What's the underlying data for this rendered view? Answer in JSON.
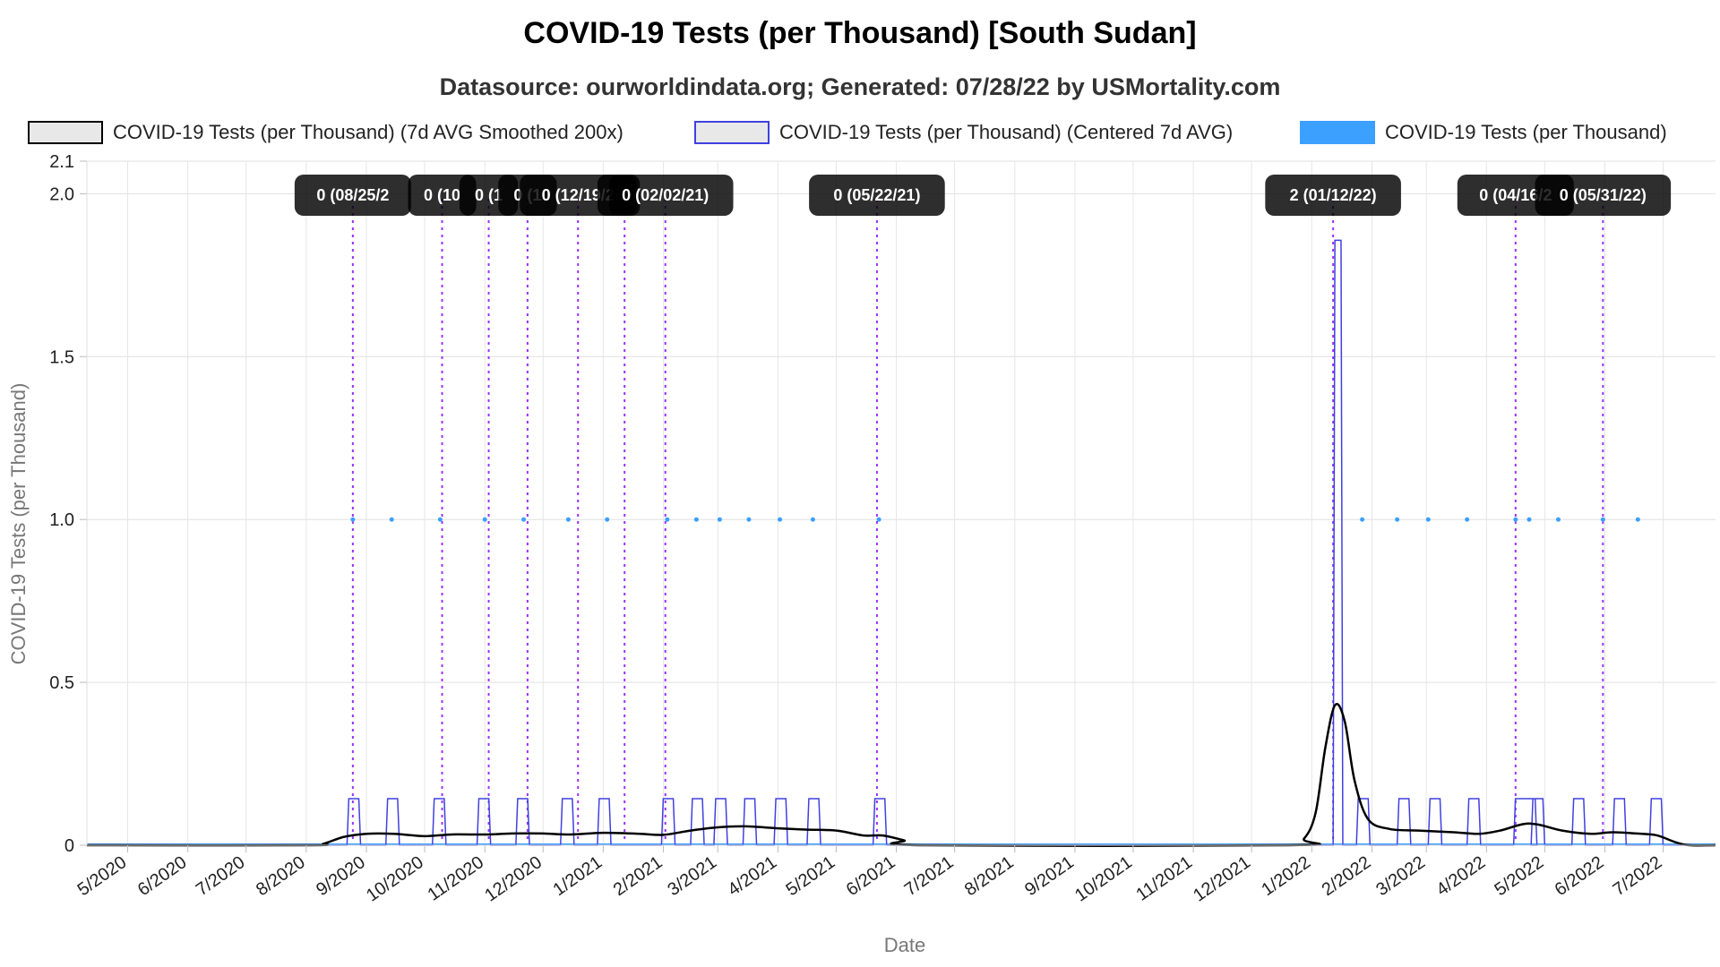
{
  "chart_data": {
    "type": "line",
    "title": "COVID-19 Tests (per Thousand) [South Sudan]",
    "subtitle": "Datasource: ourworldindata.org; Generated: 07/28/22 by USMortality.com",
    "xlabel": "Date",
    "ylabel": "COVID-19 Tests (per Thousand)",
    "ylim": [
      0,
      2.1
    ],
    "y_ticks": [
      "0",
      "0.5",
      "1.0",
      "1.5",
      "2.0",
      "2.1"
    ],
    "y_tick_values": [
      0,
      0.5,
      1.0,
      1.5,
      2.0,
      2.1
    ],
    "xlim": [
      "2020-04-10",
      "2022-07-28"
    ],
    "x_ticks": [
      {
        "label": "5/2020",
        "date": "2020-05-01"
      },
      {
        "label": "6/2020",
        "date": "2020-06-01"
      },
      {
        "label": "7/2020",
        "date": "2020-07-01"
      },
      {
        "label": "8/2020",
        "date": "2020-08-01"
      },
      {
        "label": "9/2020",
        "date": "2020-09-01"
      },
      {
        "label": "10/2020",
        "date": "2020-10-01"
      },
      {
        "label": "11/2020",
        "date": "2020-11-01"
      },
      {
        "label": "12/2020",
        "date": "2020-12-01"
      },
      {
        "label": "1/2021",
        "date": "2021-01-01"
      },
      {
        "label": "2/2021",
        "date": "2021-02-01"
      },
      {
        "label": "3/2021",
        "date": "2021-03-01"
      },
      {
        "label": "4/2021",
        "date": "2021-04-01"
      },
      {
        "label": "5/2021",
        "date": "2021-05-01"
      },
      {
        "label": "6/2021",
        "date": "2021-06-01"
      },
      {
        "label": "7/2021",
        "date": "2021-07-01"
      },
      {
        "label": "8/2021",
        "date": "2021-08-01"
      },
      {
        "label": "9/2021",
        "date": "2021-09-01"
      },
      {
        "label": "10/2021",
        "date": "2021-10-01"
      },
      {
        "label": "11/2021",
        "date": "2021-11-01"
      },
      {
        "label": "12/2021",
        "date": "2021-12-01"
      },
      {
        "label": "1/2022",
        "date": "2022-01-01"
      },
      {
        "label": "2/2022",
        "date": "2022-02-01"
      },
      {
        "label": "3/2022",
        "date": "2022-03-01"
      },
      {
        "label": "4/2022",
        "date": "2022-04-01"
      },
      {
        "label": "5/2022",
        "date": "2022-05-01"
      },
      {
        "label": "6/2022",
        "date": "2022-06-01"
      },
      {
        "label": "7/2022",
        "date": "2022-07-01"
      }
    ],
    "legend": {
      "position": "top",
      "entries": [
        {
          "name": "COVID-19 Tests (per Thousand) (7d AVG Smoothed 200x)",
          "color": "#000000",
          "fill": "#e8e8e8"
        },
        {
          "name": "COVID-19 Tests (per Thousand) (Centered 7d AVG)",
          "color": "#4040e0",
          "fill": "#e8e8e8"
        },
        {
          "name": "COVID-19 Tests (per Thousand)",
          "color": "#3ba0ff",
          "fill": "#3ba0ff"
        }
      ]
    },
    "grid": true,
    "series": [
      {
        "name": "COVID-19 Tests (per Thousand) (7d AVG Smoothed 200x)",
        "color": "#000000",
        "style": "smooth",
        "points": [
          [
            "2020-04-10",
            0
          ],
          [
            "2020-08-01",
            0
          ],
          [
            "2020-08-10",
            0.005
          ],
          [
            "2020-08-20",
            0.025
          ],
          [
            "2020-09-01",
            0.035
          ],
          [
            "2020-09-15",
            0.035
          ],
          [
            "2020-10-01",
            0.028
          ],
          [
            "2020-10-15",
            0.033
          ],
          [
            "2020-11-01",
            0.033
          ],
          [
            "2020-11-15",
            0.036
          ],
          [
            "2020-12-01",
            0.036
          ],
          [
            "2020-12-15",
            0.033
          ],
          [
            "2021-01-01",
            0.038
          ],
          [
            "2021-01-20",
            0.035
          ],
          [
            "2021-02-01",
            0.032
          ],
          [
            "2021-02-15",
            0.045
          ],
          [
            "2021-03-01",
            0.055
          ],
          [
            "2021-03-15",
            0.058
          ],
          [
            "2021-04-01",
            0.052
          ],
          [
            "2021-04-15",
            0.048
          ],
          [
            "2021-05-01",
            0.045
          ],
          [
            "2021-05-15",
            0.03
          ],
          [
            "2021-05-25",
            0.03
          ],
          [
            "2021-06-05",
            0.015
          ],
          [
            "2021-06-15",
            0
          ],
          [
            "2021-12-20",
            0
          ],
          [
            "2021-12-28",
            0.02
          ],
          [
            "2022-01-03",
            0.1
          ],
          [
            "2022-01-08",
            0.3
          ],
          [
            "2022-01-13",
            0.43
          ],
          [
            "2022-01-18",
            0.38
          ],
          [
            "2022-01-23",
            0.2
          ],
          [
            "2022-01-30",
            0.08
          ],
          [
            "2022-02-10",
            0.05
          ],
          [
            "2022-02-25",
            0.045
          ],
          [
            "2022-03-15",
            0.04
          ],
          [
            "2022-03-28",
            0.035
          ],
          [
            "2022-04-08",
            0.045
          ],
          [
            "2022-04-20",
            0.065
          ],
          [
            "2022-04-28",
            0.063
          ],
          [
            "2022-05-10",
            0.045
          ],
          [
            "2022-05-25",
            0.035
          ],
          [
            "2022-06-05",
            0.04
          ],
          [
            "2022-06-20",
            0.035
          ],
          [
            "2022-06-28",
            0.03
          ],
          [
            "2022-07-08",
            0.008
          ],
          [
            "2022-07-15",
            0
          ],
          [
            "2022-07-28",
            0
          ]
        ]
      },
      {
        "name": "COVID-19 Tests (per Thousand) (Centered 7d AVG)",
        "color": "#4040e0",
        "style": "pulses",
        "pulse_value": 0.143,
        "pulse_days": 7,
        "pulse_starts": [
          "2020-08-22",
          "2020-09-11",
          "2020-10-05",
          "2020-10-28",
          "2020-11-17",
          "2020-12-10",
          "2020-12-29",
          "2021-01-31",
          "2021-02-15",
          "2021-02-27",
          "2021-03-14",
          "2021-03-30",
          "2021-04-16",
          "2021-05-20",
          "2022-01-24",
          "2022-02-14",
          "2022-03-02",
          "2022-03-22",
          "2022-04-24",
          "2022-05-15",
          "2022-06-05",
          "2022-06-24"
        ],
        "wide_pulses": [
          {
            "start": "2022-04-15",
            "end": "2022-04-27",
            "value": 0.143
          }
        ],
        "spike": {
          "start": "2022-01-12",
          "end": "2022-01-17",
          "value": 1.857
        }
      },
      {
        "name": "COVID-19 Tests (per Thousand)",
        "color": "#3ba0ff",
        "style": "points",
        "points": [
          [
            "2020-08-25",
            1
          ],
          [
            "2020-09-14",
            1
          ],
          [
            "2020-10-09",
            1
          ],
          [
            "2020-11-01",
            1
          ],
          [
            "2020-11-21",
            1
          ],
          [
            "2020-12-14",
            1
          ],
          [
            "2021-01-03",
            1
          ],
          [
            "2021-02-03",
            1
          ],
          [
            "2021-02-18",
            1
          ],
          [
            "2021-03-02",
            1
          ],
          [
            "2021-03-17",
            1
          ],
          [
            "2021-04-02",
            1
          ],
          [
            "2021-04-19",
            1
          ],
          [
            "2021-05-23",
            1
          ],
          [
            "2022-01-27",
            1
          ],
          [
            "2022-02-14",
            1
          ],
          [
            "2022-03-02",
            1
          ],
          [
            "2022-03-22",
            1
          ],
          [
            "2022-04-16",
            1
          ],
          [
            "2022-04-23",
            1
          ],
          [
            "2022-05-08",
            1
          ],
          [
            "2022-05-31",
            1
          ],
          [
            "2022-06-18",
            1
          ]
        ]
      }
    ],
    "annotations": [
      {
        "date": "2020-08-25",
        "label": "0 (08/25/2"
      },
      {
        "date": "2020-10-10",
        "label": "0 (10"
      },
      {
        "date": "2020-11-03",
        "label": "0 (1"
      },
      {
        "date": "2020-11-23",
        "label": "0 (1"
      },
      {
        "date": "2020-12-19",
        "label": "0 (12/19/2"
      },
      {
        "date": "2021-01-12",
        "label": ""
      },
      {
        "date": "2021-02-02",
        "label": "0 (02/02/21)"
      },
      {
        "date": "2021-05-22",
        "label": "0 (05/22/21)"
      },
      {
        "date": "2022-01-12",
        "label": "2 (01/12/22)"
      },
      {
        "date": "2022-04-16",
        "label": "0 (04/16/2"
      },
      {
        "date": "2022-05-31",
        "label": "0 (05/31/22)"
      }
    ]
  }
}
